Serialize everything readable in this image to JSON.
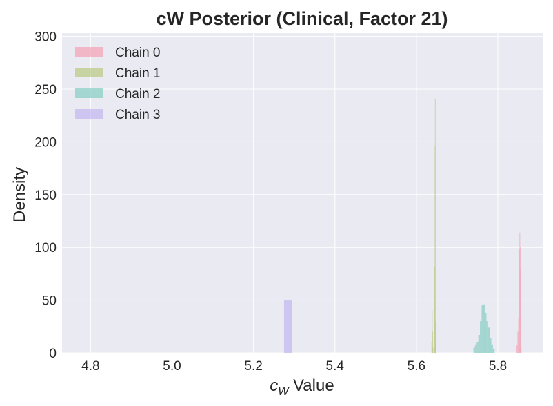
{
  "chart_data": {
    "type": "histogram",
    "title": "cW Posterior (Clinical, Factor 21)",
    "xlabel_main": "c",
    "xlabel_sub": "W",
    "xlabel_rest": " Value",
    "ylabel": "Density",
    "xlim": [
      4.73,
      5.91
    ],
    "ylim": [
      0,
      303
    ],
    "xticks": [
      "4.8",
      "5.0",
      "5.2",
      "5.4",
      "5.6",
      "5.8"
    ],
    "xtick_values": [
      4.8,
      5.0,
      5.2,
      5.4,
      5.6,
      5.8
    ],
    "yticks": [
      "0",
      "50",
      "100",
      "150",
      "200",
      "250",
      "300"
    ],
    "ytick_values": [
      0,
      50,
      100,
      150,
      200,
      250,
      300
    ],
    "grid": true,
    "legend_position": "top-left",
    "series": [
      {
        "name": "Chain 0",
        "color": "#f4a6b7",
        "bins": [
          {
            "x0": 5.844,
            "x1": 5.846,
            "y": 7
          },
          {
            "x0": 5.846,
            "x1": 5.848,
            "y": 7
          },
          {
            "x0": 5.848,
            "x1": 5.85,
            "y": 20
          },
          {
            "x0": 5.85,
            "x1": 5.851,
            "y": 33
          },
          {
            "x0": 5.851,
            "x1": 5.852,
            "y": 80
          },
          {
            "x0": 5.852,
            "x1": 5.853,
            "y": 98
          },
          {
            "x0": 5.853,
            "x1": 5.854,
            "y": 114
          },
          {
            "x0": 5.854,
            "x1": 5.855,
            "y": 100
          },
          {
            "x0": 5.855,
            "x1": 5.856,
            "y": 80
          },
          {
            "x0": 5.856,
            "x1": 5.858,
            "y": 5
          }
        ]
      },
      {
        "name": "Chain 1",
        "color": "#bccb8a",
        "bins": [
          {
            "x0": 5.637,
            "x1": 5.638,
            "y": 10
          },
          {
            "x0": 5.638,
            "x1": 5.639,
            "y": 40
          },
          {
            "x0": 5.639,
            "x1": 5.64,
            "y": 20
          },
          {
            "x0": 5.64,
            "x1": 5.641,
            "y": 5
          },
          {
            "x0": 5.644,
            "x1": 5.645,
            "y": 82
          },
          {
            "x0": 5.645,
            "x1": 5.6455,
            "y": 196
          },
          {
            "x0": 5.6455,
            "x1": 5.646,
            "y": 241
          },
          {
            "x0": 5.646,
            "x1": 5.647,
            "y": 30
          },
          {
            "x0": 5.647,
            "x1": 5.648,
            "y": 10
          }
        ]
      },
      {
        "name": "Chain 2",
        "color": "#8ccfc6",
        "bins": [
          {
            "x0": 5.74,
            "x1": 5.744,
            "y": 5
          },
          {
            "x0": 5.744,
            "x1": 5.748,
            "y": 8
          },
          {
            "x0": 5.748,
            "x1": 5.752,
            "y": 10
          },
          {
            "x0": 5.752,
            "x1": 5.756,
            "y": 17
          },
          {
            "x0": 5.756,
            "x1": 5.76,
            "y": 30
          },
          {
            "x0": 5.76,
            "x1": 5.764,
            "y": 45
          },
          {
            "x0": 5.764,
            "x1": 5.768,
            "y": 46
          },
          {
            "x0": 5.768,
            "x1": 5.772,
            "y": 38
          },
          {
            "x0": 5.772,
            "x1": 5.776,
            "y": 30
          },
          {
            "x0": 5.776,
            "x1": 5.78,
            "y": 24
          },
          {
            "x0": 5.78,
            "x1": 5.784,
            "y": 14
          },
          {
            "x0": 5.784,
            "x1": 5.788,
            "y": 8
          },
          {
            "x0": 5.788,
            "x1": 5.792,
            "y": 4
          }
        ]
      },
      {
        "name": "Chain 3",
        "color": "#c6b8f0",
        "bins": [
          {
            "x0": 5.275,
            "x1": 5.294,
            "y": 50
          }
        ]
      }
    ]
  }
}
